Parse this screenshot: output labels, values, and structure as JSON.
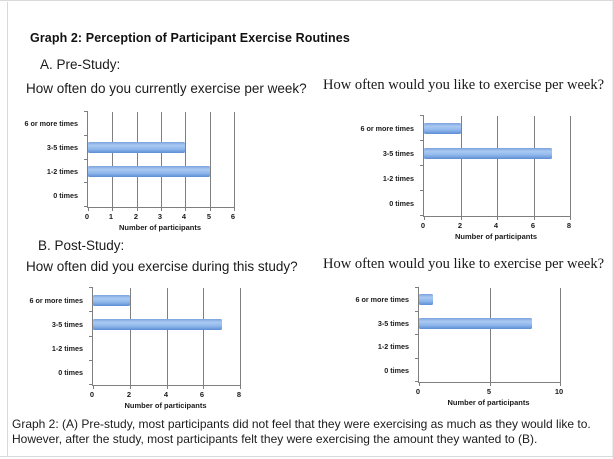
{
  "page": {
    "title": "Graph 2: Perception of Participant Exercise Routines",
    "section_a": "A. Pre-Study:",
    "section_b": "B. Post-Study:",
    "caption_line1": "Graph 2: (A) Pre-study, most participants did not feel that they were exercising as much as they would like to.",
    "caption_line2": "However, after the study, most participants felt they were exercising the amount they wanted to (B)."
  },
  "colors": {
    "bar_top": "#7aa2de",
    "bar_highlight": "#aac9f2",
    "bar_mid": "#92b9ec",
    "bar_bottom": "#5d8dd5",
    "gridline": "#7f7f7f",
    "axis": "#7f7f7f",
    "frame": "#d9d9d9",
    "text": "#1a1a1a"
  },
  "chart_data": [
    {
      "type": "bar",
      "orientation": "horizontal",
      "title": "How often do you currently exercise per week?",
      "categories": [
        "6 or more times",
        "3-5 times",
        "1-2 times",
        "0 times"
      ],
      "values": [
        0,
        4,
        5,
        0
      ],
      "xlabel": "Number of participants",
      "ylabel": "",
      "xlim": [
        0,
        6
      ],
      "xticks": [
        0,
        1,
        2,
        3,
        4,
        5,
        6
      ],
      "grid": true,
      "legend": false
    },
    {
      "type": "bar",
      "orientation": "horizontal",
      "title": "How often would you like to exercise per week?",
      "categories": [
        "6 or more times",
        "3-5 times",
        "1-2 times",
        "0 times"
      ],
      "values": [
        2,
        7,
        0,
        0
      ],
      "xlabel": "Number of participants",
      "ylabel": "",
      "xlim": [
        0,
        8
      ],
      "xticks": [
        0,
        2,
        4,
        6,
        8
      ],
      "grid": true,
      "legend": false
    },
    {
      "type": "bar",
      "orientation": "horizontal",
      "title": "How often did you exercise during this study?",
      "categories": [
        "6 or more times",
        "3-5 times",
        "1-2 times",
        "0 times"
      ],
      "values": [
        2,
        7,
        0,
        0
      ],
      "xlabel": "Number of participants",
      "ylabel": "",
      "xlim": [
        0,
        8
      ],
      "xticks": [
        0,
        2,
        4,
        6,
        8
      ],
      "grid": true,
      "legend": false
    },
    {
      "type": "bar",
      "orientation": "horizontal",
      "title": "How often would you like to exercise per week?",
      "categories": [
        "6 or more times",
        "3-5 times",
        "1-2 times",
        "0 times"
      ],
      "values": [
        1,
        8,
        0,
        0
      ],
      "xlabel": "Number of participants",
      "ylabel": "",
      "xlim": [
        0,
        10
      ],
      "xticks": [
        0,
        5,
        10
      ],
      "grid": true,
      "legend": false
    }
  ]
}
